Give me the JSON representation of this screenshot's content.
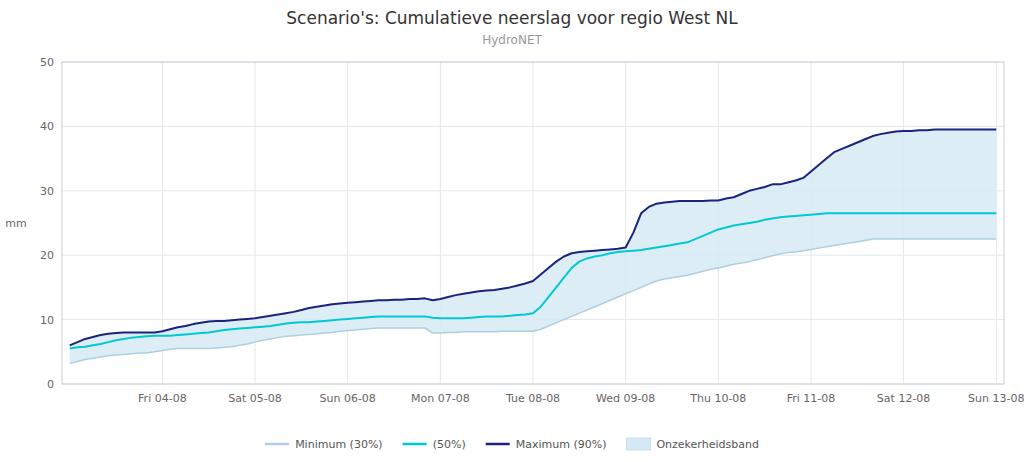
{
  "chart_data": {
    "type": "line",
    "title": "Scenario's: Cumulatieve neerslag voor regio West NL",
    "subtitle": "HydroNET",
    "ylabel": "mm",
    "grid": true,
    "legend": "bottom",
    "xlim": [
      -1,
      121
    ],
    "xticks": [
      {
        "value": 12,
        "label": "Fri 04-08"
      },
      {
        "value": 24,
        "label": "Sat 05-08"
      },
      {
        "value": 36,
        "label": "Sun 06-08"
      },
      {
        "value": 48,
        "label": "Mon 07-08"
      },
      {
        "value": 60,
        "label": "Tue 08-08"
      },
      {
        "value": 72,
        "label": "Wed 09-08"
      },
      {
        "value": 84,
        "label": "Thu 10-08"
      },
      {
        "value": 96,
        "label": "Fri 11-08"
      },
      {
        "value": 108,
        "label": "Sat 12-08"
      },
      {
        "value": 120,
        "label": "Sun 13-08"
      }
    ],
    "ylim": [
      0,
      50
    ],
    "yticks": [
      0,
      10,
      20,
      30,
      40,
      50
    ],
    "x": [
      0,
      1,
      2,
      3,
      4,
      5,
      6,
      7,
      8,
      9,
      10,
      11,
      12,
      13,
      14,
      15,
      16,
      17,
      18,
      19,
      20,
      21,
      22,
      23,
      24,
      25,
      26,
      27,
      28,
      29,
      30,
      31,
      32,
      33,
      34,
      35,
      36,
      37,
      38,
      39,
      40,
      41,
      42,
      43,
      44,
      45,
      46,
      47,
      48,
      49,
      50,
      51,
      52,
      53,
      54,
      55,
      56,
      57,
      58,
      59,
      60,
      61,
      62,
      63,
      64,
      65,
      66,
      67,
      68,
      69,
      70,
      71,
      72,
      73,
      74,
      75,
      76,
      77,
      78,
      79,
      80,
      81,
      82,
      83,
      84,
      85,
      86,
      87,
      88,
      89,
      90,
      91,
      92,
      93,
      94,
      95,
      96,
      97,
      98,
      99,
      100,
      101,
      102,
      103,
      104,
      105,
      106,
      107,
      108,
      109,
      110,
      111,
      112,
      113,
      114,
      115,
      116,
      117,
      118,
      119,
      120
    ],
    "band": {
      "name": "Onzekerheidsband",
      "color": "#d6eaf5"
    },
    "series": [
      {
        "name": "Minimum (30%)",
        "color": "#aecfe0",
        "values": [
          3.2,
          3.5,
          3.8,
          4.0,
          4.2,
          4.4,
          4.5,
          4.6,
          4.7,
          4.8,
          4.8,
          5.0,
          5.2,
          5.4,
          5.5,
          5.5,
          5.5,
          5.5,
          5.5,
          5.6,
          5.7,
          5.8,
          6.0,
          6.2,
          6.5,
          6.8,
          7.0,
          7.2,
          7.4,
          7.5,
          7.6,
          7.7,
          7.8,
          7.9,
          8.0,
          8.2,
          8.3,
          8.4,
          8.5,
          8.6,
          8.7,
          8.7,
          8.7,
          8.7,
          8.7,
          8.7,
          8.7,
          7.9,
          7.9,
          8.0,
          8.0,
          8.1,
          8.1,
          8.1,
          8.1,
          8.1,
          8.2,
          8.2,
          8.2,
          8.2,
          8.2,
          8.5,
          9.0,
          9.5,
          10.0,
          10.5,
          11.0,
          11.5,
          12.0,
          12.5,
          13.0,
          13.5,
          14.0,
          14.5,
          15.0,
          15.5,
          16.0,
          16.3,
          16.5,
          16.7,
          16.9,
          17.2,
          17.5,
          17.8,
          18.0,
          18.3,
          18.6,
          18.8,
          19.0,
          19.3,
          19.6,
          19.9,
          20.2,
          20.4,
          20.5,
          20.7,
          20.9,
          21.1,
          21.3,
          21.5,
          21.7,
          21.9,
          22.1,
          22.3,
          22.5,
          22.5,
          22.5,
          22.5,
          22.5,
          22.5,
          22.5,
          22.5,
          22.5,
          22.5,
          22.5,
          22.5,
          22.5,
          22.5,
          22.5,
          22.5,
          22.5
        ]
      },
      {
        "name": "(50%)",
        "color": "#00c8d4",
        "values": [
          5.5,
          5.7,
          5.8,
          6.0,
          6.2,
          6.5,
          6.8,
          7.0,
          7.2,
          7.3,
          7.4,
          7.5,
          7.5,
          7.5,
          7.6,
          7.7,
          7.8,
          7.9,
          8.0,
          8.2,
          8.4,
          8.5,
          8.6,
          8.7,
          8.8,
          8.9,
          9.0,
          9.2,
          9.4,
          9.5,
          9.6,
          9.6,
          9.7,
          9.8,
          9.9,
          10.0,
          10.1,
          10.2,
          10.3,
          10.4,
          10.5,
          10.5,
          10.5,
          10.5,
          10.5,
          10.5,
          10.5,
          10.3,
          10.2,
          10.2,
          10.2,
          10.2,
          10.3,
          10.4,
          10.5,
          10.5,
          10.5,
          10.6,
          10.7,
          10.8,
          11.0,
          12.0,
          13.5,
          15.0,
          16.5,
          18.0,
          19.0,
          19.5,
          19.8,
          20.0,
          20.3,
          20.5,
          20.6,
          20.7,
          20.8,
          21.0,
          21.2,
          21.4,
          21.6,
          21.8,
          22.0,
          22.5,
          23.0,
          23.5,
          24.0,
          24.3,
          24.6,
          24.8,
          25.0,
          25.2,
          25.5,
          25.7,
          25.9,
          26.0,
          26.1,
          26.2,
          26.3,
          26.4,
          26.5,
          26.5,
          26.5,
          26.5,
          26.5,
          26.5,
          26.5,
          26.5,
          26.5,
          26.5,
          26.5,
          26.5,
          26.5,
          26.5,
          26.5,
          26.5,
          26.5,
          26.5,
          26.5,
          26.5,
          26.5,
          26.5,
          26.5
        ]
      },
      {
        "name": "Maximum (90%)",
        "color": "#1a237e",
        "values": [
          6.0,
          6.5,
          7.0,
          7.3,
          7.6,
          7.8,
          7.9,
          8.0,
          8.0,
          8.0,
          8.0,
          8.0,
          8.2,
          8.5,
          8.8,
          9.0,
          9.3,
          9.5,
          9.7,
          9.8,
          9.8,
          9.9,
          10.0,
          10.1,
          10.2,
          10.4,
          10.6,
          10.8,
          11.0,
          11.2,
          11.5,
          11.8,
          12.0,
          12.2,
          12.4,
          12.5,
          12.6,
          12.7,
          12.8,
          12.9,
          13.0,
          13.0,
          13.1,
          13.1,
          13.2,
          13.2,
          13.3,
          13.0,
          13.2,
          13.5,
          13.8,
          14.0,
          14.2,
          14.4,
          14.5,
          14.6,
          14.8,
          15.0,
          15.3,
          15.6,
          16.0,
          17.0,
          18.0,
          19.0,
          19.8,
          20.3,
          20.5,
          20.6,
          20.7,
          20.8,
          20.9,
          21.0,
          21.2,
          23.5,
          26.5,
          27.5,
          28.0,
          28.2,
          28.3,
          28.4,
          28.4,
          28.4,
          28.4,
          28.5,
          28.5,
          28.8,
          29.0,
          29.5,
          30.0,
          30.3,
          30.6,
          31.0,
          31.0,
          31.3,
          31.6,
          32.0,
          33.0,
          34.0,
          35.0,
          36.0,
          36.5,
          37.0,
          37.5,
          38.0,
          38.5,
          38.8,
          39.0,
          39.2,
          39.3,
          39.3,
          39.4,
          39.4,
          39.5,
          39.5,
          39.5,
          39.5,
          39.5,
          39.5,
          39.5,
          39.5,
          39.5
        ]
      }
    ]
  }
}
